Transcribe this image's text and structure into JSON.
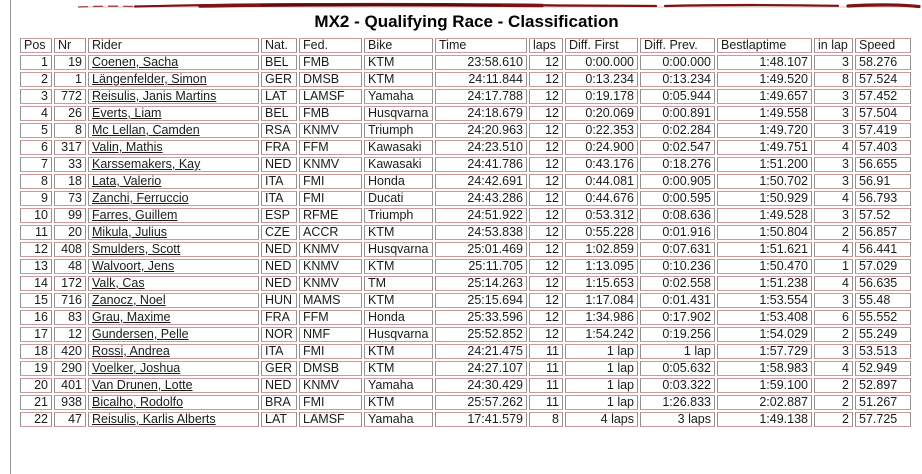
{
  "page": {
    "title": "MX2 - Qualifying Race - Classification"
  },
  "colors": {
    "accent_brush_red": "#7c1416",
    "row_border_pink": "#cc9a9a",
    "grid_line_grey": "#919191"
  },
  "table": {
    "columns": [
      {
        "key": "pos",
        "label": "Pos",
        "align": "right"
      },
      {
        "key": "nr",
        "label": "Nr",
        "align": "right"
      },
      {
        "key": "rider",
        "label": "Rider",
        "align": "left",
        "link": true
      },
      {
        "key": "nat",
        "label": "Nat.",
        "align": "left"
      },
      {
        "key": "fed",
        "label": "Fed.",
        "align": "left"
      },
      {
        "key": "bike",
        "label": "Bike",
        "align": "left"
      },
      {
        "key": "time",
        "label": "Time",
        "align": "right"
      },
      {
        "key": "laps",
        "label": "laps",
        "align": "right"
      },
      {
        "key": "diff_first",
        "label": "Diff. First",
        "align": "right"
      },
      {
        "key": "diff_prev",
        "label": "Diff. Prev.",
        "align": "right"
      },
      {
        "key": "bestlaptime",
        "label": "Bestlaptime",
        "align": "right"
      },
      {
        "key": "in_lap",
        "label": "in lap",
        "align": "right"
      },
      {
        "key": "speed",
        "label": "Speed",
        "align": "left"
      }
    ],
    "rows": [
      [
        "1",
        "19",
        "Coenen, Sacha",
        "BEL",
        "FMB",
        "KTM",
        "23:58.610",
        "12",
        "0:00.000",
        "0:00.000",
        "1:48.107",
        "3",
        "58.276"
      ],
      [
        "2",
        "1",
        "Längenfelder, Simon",
        "GER",
        "DMSB",
        "KTM",
        "24:11.844",
        "12",
        "0:13.234",
        "0:13.234",
        "1:49.520",
        "8",
        "57.524"
      ],
      [
        "3",
        "772",
        "Reisulis, Janis Martins",
        "LAT",
        "LAMSF",
        "Yamaha",
        "24:17.788",
        "12",
        "0:19.178",
        "0:05.944",
        "1:49.657",
        "3",
        "57.452"
      ],
      [
        "4",
        "26",
        "Everts, Liam",
        "BEL",
        "FMB",
        "Husqvarna",
        "24:18.679",
        "12",
        "0:20.069",
        "0:00.891",
        "1:49.558",
        "3",
        "57.504"
      ],
      [
        "5",
        "8",
        "Mc Lellan, Camden",
        "RSA",
        "KNMV",
        "Triumph",
        "24:20.963",
        "12",
        "0:22.353",
        "0:02.284",
        "1:49.720",
        "3",
        "57.419"
      ],
      [
        "6",
        "317",
        "Valin, Mathis",
        "FRA",
        "FFM",
        "Kawasaki",
        "24:23.510",
        "12",
        "0:24.900",
        "0:02.547",
        "1:49.751",
        "4",
        "57.403"
      ],
      [
        "7",
        "33",
        "Karssemakers, Kay",
        "NED",
        "KNMV",
        "Kawasaki",
        "24:41.786",
        "12",
        "0:43.176",
        "0:18.276",
        "1:51.200",
        "3",
        "56.655"
      ],
      [
        "8",
        "18",
        "Lata, Valerio",
        "ITA",
        "FMI",
        "Honda",
        "24:42.691",
        "12",
        "0:44.081",
        "0:00.905",
        "1:50.702",
        "3",
        "56.91"
      ],
      [
        "9",
        "73",
        "Zanchi, Ferruccio",
        "ITA",
        "FMI",
        "Ducati",
        "24:43.286",
        "12",
        "0:44.676",
        "0:00.595",
        "1:50.929",
        "4",
        "56.793"
      ],
      [
        "10",
        "99",
        "Farres, Guillem",
        "ESP",
        "RFME",
        "Triumph",
        "24:51.922",
        "12",
        "0:53.312",
        "0:08.636",
        "1:49.528",
        "3",
        "57.52"
      ],
      [
        "11",
        "20",
        "Mikula, Julius",
        "CZE",
        "ACCR",
        "KTM",
        "24:53.838",
        "12",
        "0:55.228",
        "0:01.916",
        "1:50.804",
        "2",
        "56.857"
      ],
      [
        "12",
        "408",
        "Smulders, Scott",
        "NED",
        "KNMV",
        "Husqvarna",
        "25:01.469",
        "12",
        "1:02.859",
        "0:07.631",
        "1:51.621",
        "4",
        "56.441"
      ],
      [
        "13",
        "48",
        "Walvoort, Jens",
        "NED",
        "KNMV",
        "KTM",
        "25:11.705",
        "12",
        "1:13.095",
        "0:10.236",
        "1:50.470",
        "1",
        "57.029"
      ],
      [
        "14",
        "172",
        "Valk, Cas",
        "NED",
        "KNMV",
        "TM",
        "25:14.263",
        "12",
        "1:15.653",
        "0:02.558",
        "1:51.238",
        "4",
        "56.635"
      ],
      [
        "15",
        "716",
        "Zanocz, Noel",
        "HUN",
        "MAMS",
        "KTM",
        "25:15.694",
        "12",
        "1:17.084",
        "0:01.431",
        "1:53.554",
        "3",
        "55.48"
      ],
      [
        "16",
        "83",
        "Grau, Maxime",
        "FRA",
        "FFM",
        "Honda",
        "25:33.596",
        "12",
        "1:34.986",
        "0:17.902",
        "1:53.408",
        "6",
        "55.552"
      ],
      [
        "17",
        "12",
        "Gundersen, Pelle",
        "NOR",
        "NMF",
        "Husqvarna",
        "25:52.852",
        "12",
        "1:54.242",
        "0:19.256",
        "1:54.029",
        "2",
        "55.249"
      ],
      [
        "18",
        "420",
        "Rossi, Andrea",
        "ITA",
        "FMI",
        "KTM",
        "24:21.475",
        "11",
        "1 lap",
        "1 lap",
        "1:57.729",
        "3",
        "53.513"
      ],
      [
        "19",
        "290",
        "Voelker, Joshua",
        "GER",
        "DMSB",
        "KTM",
        "24:27.107",
        "11",
        "1 lap",
        "0:05.632",
        "1:58.983",
        "4",
        "52.949"
      ],
      [
        "20",
        "401",
        "Van Drunen, Lotte",
        "NED",
        "KNMV",
        "Yamaha",
        "24:30.429",
        "11",
        "1 lap",
        "0:03.322",
        "1:59.100",
        "2",
        "52.897"
      ],
      [
        "21",
        "938",
        "Bicalho, Rodolfo",
        "BRA",
        "FMI",
        "KTM",
        "25:57.262",
        "11",
        "1 lap",
        "1:26.833",
        "2:02.887",
        "2",
        "51.267"
      ],
      [
        "22",
        "47",
        "Reisulis, Karlis Alberts",
        "LAT",
        "LAMSF",
        "Yamaha",
        "17:41.579",
        "8",
        "4 laps",
        "3 laps",
        "1:49.138",
        "2",
        "57.725"
      ]
    ]
  }
}
